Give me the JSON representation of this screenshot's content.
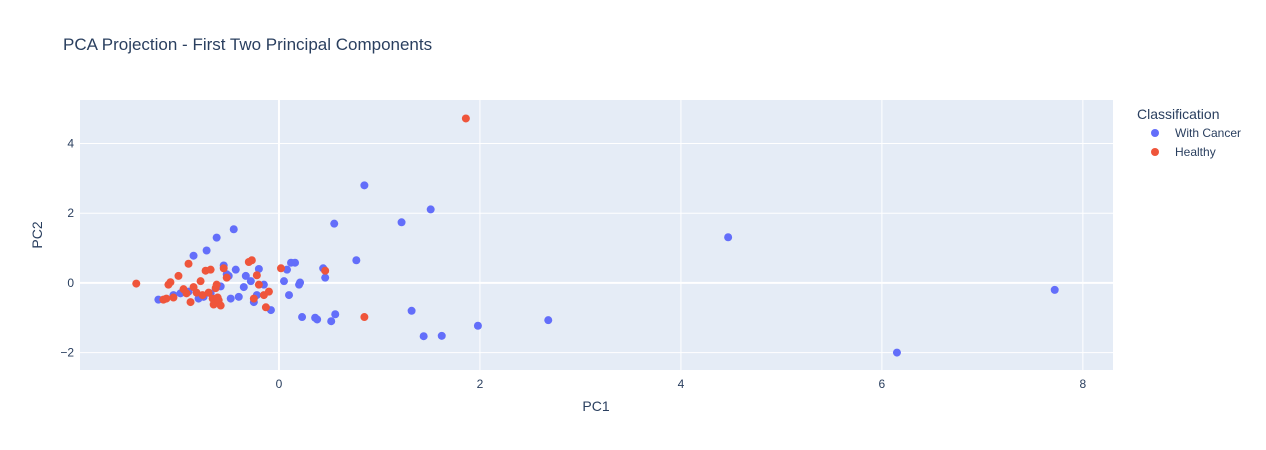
{
  "chart_data": {
    "type": "scatter",
    "title": "PCA Projection - First Two Principal Components",
    "xlabel": "PC1",
    "ylabel": "PC2",
    "xlim": [
      -1.98,
      8.3
    ],
    "ylim": [
      -2.5,
      5.25
    ],
    "x_ticks": [
      0,
      2,
      4,
      6,
      8
    ],
    "y_ticks": [
      -2,
      0,
      2,
      4
    ],
    "x_tick_labels": [
      "0",
      "2",
      "4",
      "6",
      "8"
    ],
    "y_tick_labels": [
      "−2",
      "0",
      "2",
      "4"
    ],
    "grid": true,
    "legend_title": "Classification",
    "legend_position": "right",
    "colors": {
      "background": "#e5ecf6",
      "with_cancer": "#636efa",
      "healthy": "#ef553b"
    },
    "series": [
      {
        "name": "With Cancer",
        "color": "#636efa",
        "points": [
          [
            -1.2,
            -0.48
          ],
          [
            -1.05,
            -0.35
          ],
          [
            -0.98,
            -0.3
          ],
          [
            -0.9,
            -0.25
          ],
          [
            -0.85,
            0.78
          ],
          [
            -0.8,
            -0.45
          ],
          [
            -0.75,
            -0.4
          ],
          [
            -0.72,
            0.93
          ],
          [
            -0.68,
            -0.3
          ],
          [
            -0.62,
            1.3
          ],
          [
            -0.58,
            -0.1
          ],
          [
            -0.55,
            0.5
          ],
          [
            -0.52,
            0.25
          ],
          [
            -0.5,
            0.2
          ],
          [
            -0.48,
            -0.45
          ],
          [
            -0.45,
            1.54
          ],
          [
            -0.43,
            0.38
          ],
          [
            -0.4,
            -0.4
          ],
          [
            -0.35,
            -0.12
          ],
          [
            -0.33,
            0.2
          ],
          [
            -0.28,
            0.05
          ],
          [
            -0.25,
            -0.55
          ],
          [
            -0.22,
            -0.35
          ],
          [
            -0.2,
            0.4
          ],
          [
            -0.15,
            -0.05
          ],
          [
            -0.08,
            -0.78
          ],
          [
            0.05,
            0.05
          ],
          [
            0.08,
            0.38
          ],
          [
            0.1,
            -0.35
          ],
          [
            0.12,
            0.58
          ],
          [
            0.16,
            0.58
          ],
          [
            0.2,
            -0.05
          ],
          [
            0.21,
            0.01
          ],
          [
            0.23,
            -0.98
          ],
          [
            0.36,
            -1.0
          ],
          [
            0.38,
            -1.05
          ],
          [
            0.44,
            0.42
          ],
          [
            0.46,
            0.15
          ],
          [
            0.52,
            -1.1
          ],
          [
            0.55,
            1.7
          ],
          [
            0.56,
            -0.9
          ],
          [
            0.77,
            0.65
          ],
          [
            0.85,
            2.8
          ],
          [
            1.22,
            1.74
          ],
          [
            1.32,
            -0.8
          ],
          [
            1.44,
            -1.53
          ],
          [
            1.51,
            2.11
          ],
          [
            1.62,
            -1.52
          ],
          [
            1.98,
            -1.23
          ],
          [
            2.68,
            -1.07
          ],
          [
            4.47,
            1.31
          ],
          [
            6.15,
            -2.0
          ],
          [
            7.72,
            -0.2
          ]
        ]
      },
      {
        "name": "Healthy",
        "color": "#ef553b",
        "points": [
          [
            -1.42,
            -0.02
          ],
          [
            -1.15,
            -0.48
          ],
          [
            -1.12,
            -0.45
          ],
          [
            -1.1,
            -0.05
          ],
          [
            -1.08,
            0.02
          ],
          [
            -1.05,
            -0.42
          ],
          [
            -1.0,
            0.2
          ],
          [
            -0.95,
            -0.18
          ],
          [
            -0.92,
            -0.3
          ],
          [
            -0.9,
            0.55
          ],
          [
            -0.88,
            -0.55
          ],
          [
            -0.85,
            -0.12
          ],
          [
            -0.82,
            -0.28
          ],
          [
            -0.78,
            0.05
          ],
          [
            -0.76,
            -0.35
          ],
          [
            -0.73,
            0.35
          ],
          [
            -0.7,
            -0.28
          ],
          [
            -0.68,
            0.38
          ],
          [
            -0.66,
            -0.45
          ],
          [
            -0.65,
            -0.62
          ],
          [
            -0.63,
            -0.15
          ],
          [
            -0.62,
            -0.05
          ],
          [
            -0.61,
            -0.42
          ],
          [
            -0.6,
            -0.5
          ],
          [
            -0.58,
            -0.65
          ],
          [
            -0.55,
            0.42
          ],
          [
            -0.52,
            0.15
          ],
          [
            -0.3,
            0.6
          ],
          [
            -0.27,
            0.65
          ],
          [
            -0.25,
            -0.45
          ],
          [
            -0.22,
            0.22
          ],
          [
            -0.2,
            -0.05
          ],
          [
            -0.15,
            -0.35
          ],
          [
            -0.13,
            -0.7
          ],
          [
            -0.1,
            -0.25
          ],
          [
            0.02,
            0.42
          ],
          [
            0.46,
            0.35
          ],
          [
            0.85,
            -0.98
          ],
          [
            1.86,
            4.72
          ]
        ]
      }
    ]
  }
}
